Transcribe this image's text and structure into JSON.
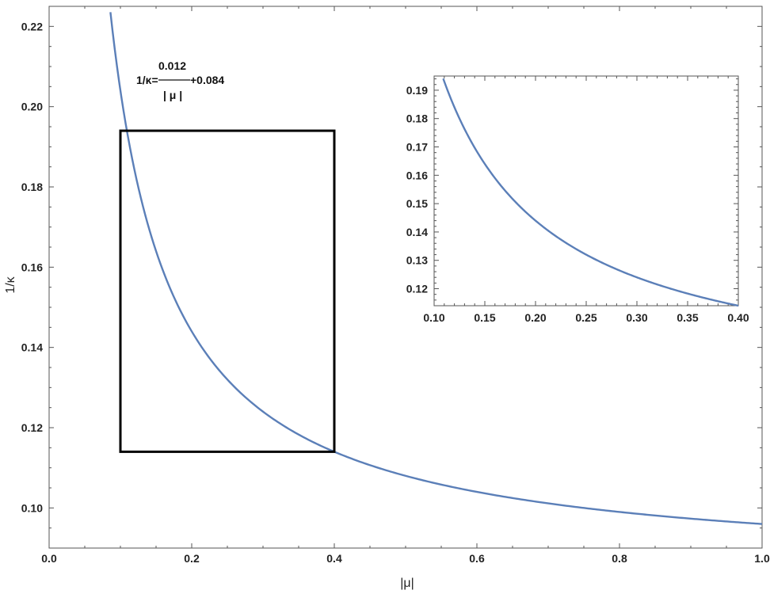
{
  "colors": {
    "curve": "#5b7fb8",
    "frame": "#555555",
    "box": "#000000",
    "text": "#222222"
  },
  "chart_data": [
    {
      "id": "main",
      "type": "line",
      "title": "",
      "xlabel": "|μ|",
      "ylabel": "1/κ",
      "xlim": [
        0,
        1.0
      ],
      "ylim": [
        0.09,
        0.225
      ],
      "x_ticks": [
        0.0,
        0.2,
        0.4,
        0.6,
        0.8,
        1.0
      ],
      "x_tick_labels": [
        "0.0",
        "0.2",
        "0.4",
        "0.6",
        "0.8",
        "1.0"
      ],
      "y_ticks": [
        0.1,
        0.12,
        0.14,
        0.16,
        0.18,
        0.2,
        0.22
      ],
      "y_tick_labels": [
        "0.10",
        "0.12",
        "0.14",
        "0.16",
        "0.18",
        "0.20",
        "0.22"
      ],
      "grid": false,
      "series": [
        {
          "formula": "0.012/x + 0.084",
          "x_range": [
            0.086,
            1.0
          ],
          "points": [
            [
              0.086,
              0.2235
            ],
            [
              0.1,
              0.204
            ],
            [
              0.12,
              0.184
            ],
            [
              0.15,
              0.164
            ],
            [
              0.2,
              0.144
            ],
            [
              0.25,
              0.132
            ],
            [
              0.3,
              0.124
            ],
            [
              0.35,
              0.1183
            ],
            [
              0.4,
              0.114
            ],
            [
              0.5,
              0.108
            ],
            [
              0.6,
              0.104
            ],
            [
              0.7,
              0.1011
            ],
            [
              0.8,
              0.099
            ],
            [
              0.9,
              0.0973
            ],
            [
              1.0,
              0.096
            ]
          ]
        }
      ],
      "annotation": {
        "lhs": "1/κ=",
        "numerator": "0.012",
        "denominator": "| μ |",
        "rhs": "+0.084"
      },
      "zoom_box": {
        "x_range": [
          0.1,
          0.4
        ],
        "y_range": [
          0.114,
          0.194
        ]
      }
    },
    {
      "id": "inset",
      "type": "line",
      "title": "",
      "xlabel": "",
      "ylabel": "",
      "xlim": [
        0.1,
        0.4
      ],
      "ylim": [
        0.114,
        0.195
      ],
      "x_ticks": [
        0.1,
        0.15,
        0.2,
        0.25,
        0.3,
        0.35,
        0.4
      ],
      "x_tick_labels": [
        "0.10",
        "0.15",
        "0.20",
        "0.25",
        "0.30",
        "0.35",
        "0.40"
      ],
      "y_ticks": [
        0.12,
        0.13,
        0.14,
        0.15,
        0.16,
        0.17,
        0.18,
        0.19
      ],
      "y_tick_labels": [
        "0.12",
        "0.13",
        "0.14",
        "0.15",
        "0.16",
        "0.17",
        "0.18",
        "0.19"
      ],
      "grid": false,
      "series": [
        {
          "formula": "0.012/x + 0.084",
          "x_range": [
            0.109,
            0.4
          ]
        }
      ]
    }
  ]
}
